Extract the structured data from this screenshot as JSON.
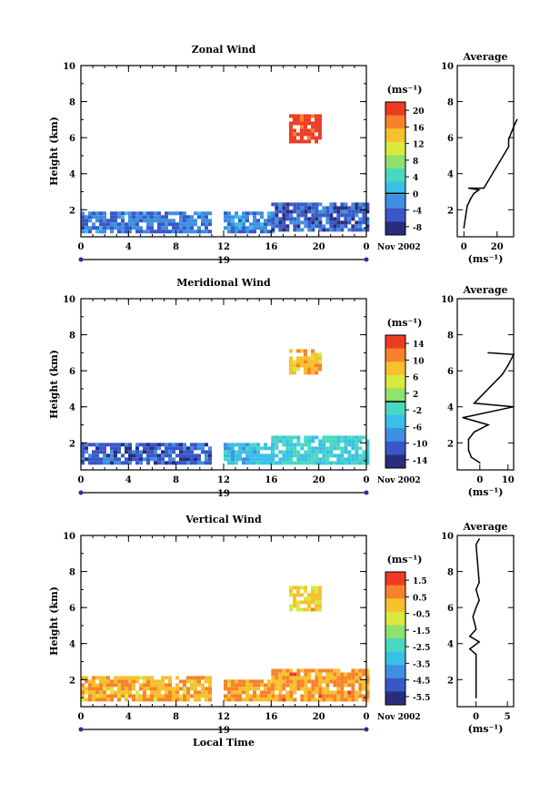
{
  "chart_data": [
    {
      "type": "heatmap",
      "title": "Zonal Wind",
      "ylabel": "Height (km)",
      "xlabel": "",
      "y_ticks": [
        "2",
        "4",
        "6",
        "8",
        "10"
      ],
      "x_ticks": [
        "0",
        "4",
        "8",
        "12",
        "16",
        "20",
        "0"
      ],
      "ylim": [
        0.5,
        10
      ],
      "xlim": [
        0,
        24
      ],
      "date_label": "19",
      "date_suffix": "Nov 2002",
      "colorbar": {
        "unit": "(ms⁻¹)",
        "ticks": [
          "20",
          "16",
          "12",
          "8",
          "4",
          "0",
          "-4",
          "-8"
        ],
        "range": [
          -10,
          22
        ],
        "zero_line": 0
      },
      "blocks": [
        {
          "x0": 0,
          "x1": 11,
          "y0": 0.8,
          "y1": 1.9,
          "value": -3
        },
        {
          "x0": 12,
          "x1": 16,
          "y0": 0.8,
          "y1": 1.9,
          "value": -2
        },
        {
          "x0": 16,
          "x1": 24,
          "y0": 0.8,
          "y1": 2.4,
          "value": -5
        },
        {
          "x0": 17.5,
          "x1": 20,
          "y0": 5.8,
          "y1": 7.3,
          "value": 21
        }
      ],
      "profile": {
        "title": "Average",
        "xlabel": "(ms⁻¹)",
        "x_ticks": [
          "0",
          "20"
        ],
        "y_ticks": [
          "2",
          "4",
          "6",
          "8",
          "10"
        ],
        "xlim": [
          -4,
          30
        ],
        "ylim": [
          0.5,
          10
        ],
        "points": [
          [
            0,
            1.0
          ],
          [
            1,
            1.6
          ],
          [
            2,
            2.2
          ],
          [
            4,
            2.6
          ],
          [
            6,
            2.9
          ],
          [
            9,
            3.1
          ],
          [
            3,
            3.2
          ],
          [
            12,
            3.2
          ],
          [
            27,
            5.5
          ],
          [
            27,
            5.9
          ],
          [
            30,
            6.6
          ],
          [
            32,
            7.0
          ]
        ]
      }
    },
    {
      "type": "heatmap",
      "title": "Meridional Wind",
      "ylabel": "Height (km)",
      "xlabel": "",
      "y_ticks": [
        "2",
        "4",
        "6",
        "8",
        "10"
      ],
      "x_ticks": [
        "0",
        "4",
        "8",
        "12",
        "16",
        "20",
        "0"
      ],
      "ylim": [
        0.5,
        10
      ],
      "xlim": [
        0,
        24
      ],
      "date_label": "19",
      "date_suffix": "Nov 2002",
      "colorbar": {
        "unit": "(ms⁻¹)",
        "ticks": [
          "14",
          "10",
          "6",
          "2",
          "-2",
          "-6",
          "-10",
          "-14"
        ],
        "range": [
          -16,
          16
        ],
        "zero_line": 0
      },
      "blocks": [
        {
          "x0": 0,
          "x1": 11,
          "y0": 0.8,
          "y1": 2.0,
          "value": -11
        },
        {
          "x0": 12,
          "x1": 16,
          "y0": 0.8,
          "y1": 2.0,
          "value": -5
        },
        {
          "x0": 16,
          "x1": 24,
          "y0": 0.8,
          "y1": 2.4,
          "value": -3
        },
        {
          "x0": 17.5,
          "x1": 20,
          "y0": 5.8,
          "y1": 7.2,
          "value": 8
        }
      ],
      "profile": {
        "title": "Average",
        "xlabel": "(ms⁻¹)",
        "x_ticks": [
          "0",
          "10"
        ],
        "y_ticks": [
          "2",
          "4",
          "6",
          "8",
          "10"
        ],
        "xlim": [
          -8,
          12
        ],
        "ylim": [
          0.5,
          10
        ],
        "points": [
          [
            0,
            0.9
          ],
          [
            -3,
            1.2
          ],
          [
            -4,
            1.6
          ],
          [
            -4,
            2.2
          ],
          [
            -2,
            2.6
          ],
          [
            3,
            3.0
          ],
          [
            -6,
            3.4
          ],
          [
            12,
            4.0
          ],
          [
            -2,
            4.2
          ],
          [
            8,
            5.8
          ],
          [
            10,
            6.3
          ],
          [
            12,
            6.9
          ],
          [
            3,
            7.0
          ]
        ]
      }
    },
    {
      "type": "heatmap",
      "title": "Vertical Wind",
      "ylabel": "Height (km)",
      "xlabel": "Local Time",
      "y_ticks": [
        "2",
        "4",
        "6",
        "8",
        "10"
      ],
      "x_ticks": [
        "0",
        "4",
        "8",
        "12",
        "16",
        "20",
        "0"
      ],
      "ylim": [
        0.5,
        10
      ],
      "xlim": [
        0,
        24
      ],
      "date_label": "19",
      "date_suffix": "Nov 2002",
      "colorbar": {
        "unit": "(ms⁻¹)",
        "ticks": [
          "1.5",
          "0.5",
          "-0.5",
          "-1.5",
          "-2.5",
          "-3.5",
          "-4.5",
          "-5.5"
        ],
        "range": [
          -6,
          2
        ],
        "zero_line": null
      },
      "blocks": [
        {
          "x0": 0,
          "x1": 11,
          "y0": 0.8,
          "y1": 2.2,
          "value": 0.2
        },
        {
          "x0": 12,
          "x1": 16,
          "y0": 0.8,
          "y1": 2.0,
          "value": 0.3
        },
        {
          "x0": 16,
          "x1": 24,
          "y0": 0.8,
          "y1": 2.6,
          "value": 0.5
        },
        {
          "x0": 17.5,
          "x1": 20,
          "y0": 5.8,
          "y1": 7.2,
          "value": -0.3
        }
      ],
      "profile": {
        "title": "Average",
        "xlabel": "(ms⁻¹)",
        "x_ticks": [
          "0",
          "5"
        ],
        "y_ticks": [
          "2",
          "4",
          "6",
          "8",
          "10"
        ],
        "xlim": [
          -3,
          6
        ],
        "ylim": [
          0.5,
          10
        ],
        "points": [
          [
            0,
            1.0
          ],
          [
            0,
            1.6
          ],
          [
            0,
            2.2
          ],
          [
            0,
            2.8
          ],
          [
            0,
            3.4
          ],
          [
            -1,
            3.7
          ],
          [
            0.5,
            4.1
          ],
          [
            -1,
            4.4
          ],
          [
            0,
            4.8
          ],
          [
            -0.5,
            5.5
          ],
          [
            0,
            6.0
          ],
          [
            0.5,
            6.4
          ],
          [
            0,
            7.0
          ],
          [
            0.5,
            7.4
          ],
          [
            0,
            9.5
          ],
          [
            0.5,
            9.8
          ]
        ]
      }
    }
  ]
}
